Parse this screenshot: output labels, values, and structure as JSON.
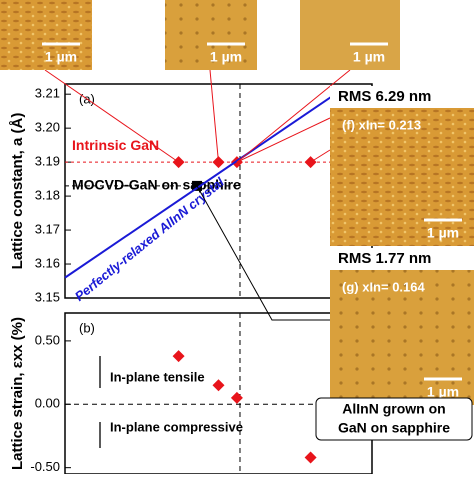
{
  "chart_data": [
    {
      "type": "scatter",
      "panel": "(a)",
      "ylabel": "Lattice constant, a (Å)",
      "xlim": [
        0.12,
        0.22
      ],
      "ylim": [
        3.15,
        3.213
      ],
      "yticks": [
        {
          "value": 3.15,
          "label": "3.15"
        },
        {
          "value": 3.16,
          "label": "3.16"
        },
        {
          "value": 3.17,
          "label": "3.17"
        },
        {
          "value": 3.18,
          "label": "3.18"
        },
        {
          "value": 3.19,
          "label": "3.19"
        },
        {
          "value": 3.2,
          "label": "3.20"
        },
        {
          "value": 3.21,
          "label": "3.21"
        }
      ],
      "vlines": [
        0.177
      ],
      "series": [
        {
          "name": "Intrinsic GaN",
          "color": "#e8141b",
          "marker": "diamond",
          "x": [
            0.157,
            0.17,
            0.176,
            0.2
          ],
          "values": [
            3.19,
            3.19,
            3.19,
            3.19
          ],
          "hline": 3.19
        },
        {
          "name": "MOCVD-GaN on sapphire",
          "color": "#000000",
          "marker": "square",
          "x": [
            0.163
          ],
          "values": [
            3.183
          ],
          "hline": 3.183
        },
        {
          "name": "Perfectly-relaxed AlInN crystal",
          "color": "#1a1ad6",
          "marker": "line",
          "x": [
            0.12,
            0.208
          ],
          "values": [
            3.156,
            3.21
          ]
        }
      ]
    },
    {
      "type": "scatter",
      "panel": "(b)",
      "ylabel": "Lattice strain, εxx (%)",
      "xlim": [
        0.12,
        0.22
      ],
      "ylim": [
        -0.55,
        0.72
      ],
      "yticks": [
        {
          "value": -0.5,
          "label": "-0.50"
        },
        {
          "value": 0,
          "label": "0.00"
        },
        {
          "value": 0.5,
          "label": "0.50"
        }
      ],
      "vlines": [
        0.177
      ],
      "annotations": [
        "In-plane tensile",
        "In-plane compressive"
      ],
      "series": [
        {
          "name": "strain",
          "color": "#e8141b",
          "marker": "diamond",
          "x": [
            0.157,
            0.17,
            0.176,
            0.2
          ],
          "values": [
            0.38,
            0.15,
            0.05,
            -0.42
          ]
        }
      ]
    }
  ],
  "afm_images": [
    {
      "scale": "1 µm"
    },
    {
      "scale": "1 µm"
    },
    {
      "scale": "1 µm"
    },
    {
      "rms": "RMS 6.29 nm",
      "label": "(f) xIn= 0.213",
      "scale": "1 µm"
    },
    {
      "rms": "RMS 1.77 nm",
      "label": "(g) xIn= 0.164",
      "scale": "1 µm"
    }
  ],
  "callout": [
    "AlInN grown on",
    "GaN on sapphire"
  ]
}
